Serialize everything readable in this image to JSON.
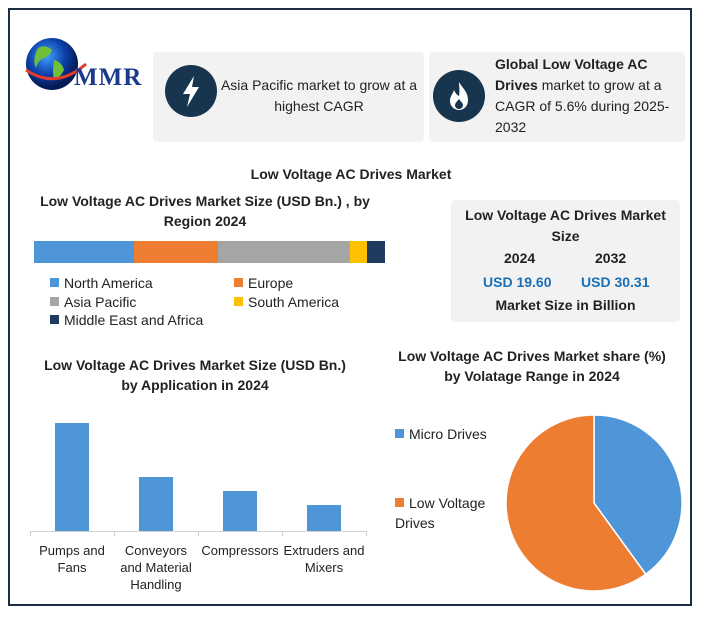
{
  "brand": {
    "name": "MMR"
  },
  "highlights": [
    {
      "icon": "lightning-bolt-icon",
      "text": "Asia Pacific market to grow at a highest CAGR"
    },
    {
      "icon": "flame-icon",
      "bold": "Global Low Voltage AC Drives",
      "text": " market to grow at a CAGR of 5.6% during 2025-2032"
    }
  ],
  "main_title": "Low Voltage AC Drives Market",
  "market_size": {
    "title": "Low Voltage AC Drives Market Size",
    "year_a": "2024",
    "year_b": "2032",
    "value_a": "USD 19.60",
    "value_b": "USD 30.31",
    "footer": "Market Size in Billion"
  },
  "colors": {
    "north_america": "#4f96d8",
    "europe": "#ed7d31",
    "asia_pacific": "#a5a5a5",
    "south_america": "#ffc000",
    "mea": "#1d3a5f",
    "frame": "#1d2e44"
  },
  "chart_data": [
    {
      "type": "bar",
      "stacked": true,
      "orientation": "horizontal",
      "title": "Low Voltage AC Drives Market Size (USD Bn.) , by Region 2024",
      "categories": [
        "North America",
        "Europe",
        "Asia Pacific",
        "South America",
        "Middle East and Africa"
      ],
      "values": [
        28.5,
        24,
        37.5,
        5,
        5
      ],
      "unit": "% share (estimated)",
      "legend": [
        "North America",
        "Europe",
        "Asia Pacific",
        "South America",
        "Middle East and Africa"
      ]
    },
    {
      "type": "bar",
      "title": "Low Voltage AC Drives Market Size (USD Bn.) by Application in 2024",
      "categories": [
        "Pumps and Fans",
        "Conveyors and Material Handling",
        "Compressors",
        "Extruders and Mixers"
      ],
      "values": [
        100,
        50,
        37,
        24
      ],
      "ylim": [
        0,
        100
      ],
      "xlabel": "",
      "ylabel": "",
      "grid": false
    },
    {
      "type": "pie",
      "title": "Low Voltage AC Drives Market share (%) by Volatage Range in 2024",
      "labels": [
        "Micro Drives",
        "Low Voltage Drives"
      ],
      "values": [
        40,
        60
      ],
      "colors": [
        "#4f96d8",
        "#ed7d31"
      ],
      "legend_position": "left"
    }
  ]
}
